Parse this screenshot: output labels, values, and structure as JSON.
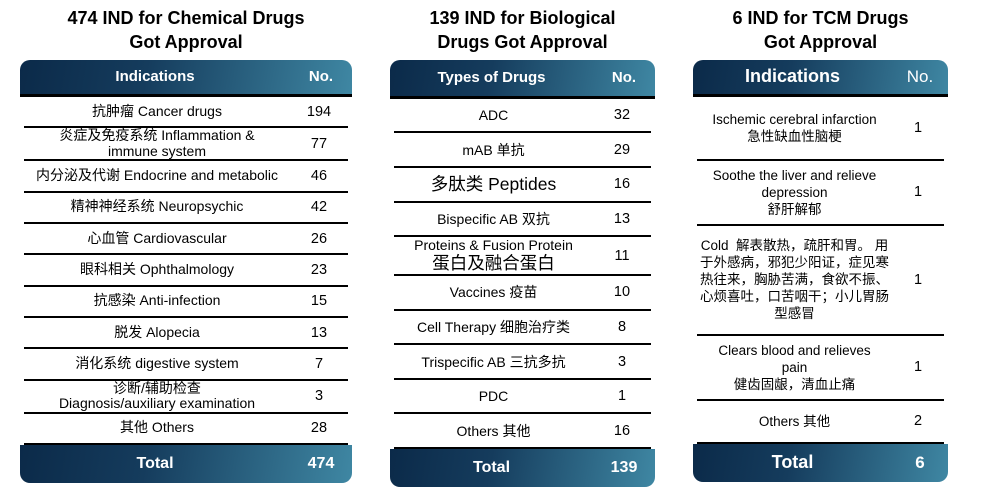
{
  "colors": {
    "gradient_start": "#0b2a49",
    "gradient_end": "#3f87a3",
    "divider": "#000000",
    "header_text": "#ffffff",
    "body_text": "#000000",
    "background": "#ffffff"
  },
  "tables": [
    {
      "id": "chemical",
      "title": "474 IND for Chemical Drugs\nGot Approval",
      "col_label": "Indications",
      "col_no": "No.",
      "rows": [
        {
          "lines": [
            {
              "text": "抗肿瘤 Cancer drugs"
            }
          ],
          "value": "194"
        },
        {
          "lines": [
            {
              "text": "炎症及免疫系统 Inflammation &"
            },
            {
              "text": "immune system"
            }
          ],
          "value": "77"
        },
        {
          "lines": [
            {
              "text": "内分泌及代谢 Endocrine and metabolic"
            }
          ],
          "value": "46"
        },
        {
          "lines": [
            {
              "text": "精神神经系统 Neuropsychic"
            }
          ],
          "value": "42"
        },
        {
          "lines": [
            {
              "text": "心血管 Cardiovascular"
            }
          ],
          "value": "26"
        },
        {
          "lines": [
            {
              "text": "眼科相关 Ophthalmology"
            }
          ],
          "value": "23"
        },
        {
          "lines": [
            {
              "text": "抗感染 Anti-infection"
            }
          ],
          "value": "15"
        },
        {
          "lines": [
            {
              "text": "脱发 Alopecia"
            }
          ],
          "value": "13"
        },
        {
          "lines": [
            {
              "text": "消化系统 digestive system"
            }
          ],
          "value": "7"
        },
        {
          "lines": [
            {
              "text": "诊断/辅助检查"
            },
            {
              "text": "Diagnosis/auxiliary examination"
            }
          ],
          "value": "3"
        },
        {
          "lines": [
            {
              "text": "其他 Others"
            }
          ],
          "value": "28"
        }
      ],
      "total_label": "Total",
      "total_value": "474"
    },
    {
      "id": "biological",
      "title": "139 IND for Biological\nDrugs Got Approval",
      "col_label": "Types of Drugs",
      "col_no": "No.",
      "rows": [
        {
          "lines": [
            {
              "text": "ADC"
            }
          ],
          "value": "32"
        },
        {
          "lines": [
            {
              "text": "mAB 单抗"
            }
          ],
          "value": "29"
        },
        {
          "lines": [
            {
              "text": "多肽类 Peptides",
              "large": true
            }
          ],
          "value": "16"
        },
        {
          "lines": [
            {
              "text": "Bispecific AB 双抗"
            }
          ],
          "value": "13"
        },
        {
          "lines": [
            {
              "text": "Proteins & Fusion Protein"
            },
            {
              "text": "蛋白及融合蛋白",
              "large": true
            }
          ],
          "value": "11"
        },
        {
          "lines": [
            {
              "text": "Vaccines 疫苗"
            }
          ],
          "value": "10"
        },
        {
          "lines": [
            {
              "text": "Cell Therapy 细胞治疗类"
            }
          ],
          "value": "8"
        },
        {
          "lines": [
            {
              "text": "Trispecific AB 三抗多抗"
            }
          ],
          "value": "3"
        },
        {
          "lines": [
            {
              "text": "PDC"
            }
          ],
          "value": "1"
        },
        {
          "lines": [
            {
              "text": "Others 其他"
            }
          ],
          "value": "16"
        }
      ],
      "total_label": "Total",
      "total_value": "139"
    },
    {
      "id": "tcm",
      "title": "6 IND for TCM Drugs\nGot Approval",
      "col_label": "Indications",
      "col_no": "No.",
      "rows": [
        {
          "lines": [
            {
              "text": "Ischemic cerebral infarction"
            },
            {
              "text": "急性缺血性脑梗"
            }
          ],
          "value": "1"
        },
        {
          "lines": [
            {
              "text": "Soothe the liver and relieve"
            },
            {
              "text": "depression"
            },
            {
              "text": "舒肝解郁"
            }
          ],
          "value": "1"
        },
        {
          "lines": [
            {
              "text": "Cold  解表散热，疏肝和胃。 用"
            },
            {
              "text": "于外感病，邪犯少阳证，症见寒"
            },
            {
              "text": "热往来，胸胁苦满，食欲不振、"
            },
            {
              "text": "心烦喜吐，口苦咽干；小儿胃肠"
            },
            {
              "text": "型感冒"
            }
          ],
          "value": "1"
        },
        {
          "lines": [
            {
              "text": "Clears blood and relieves"
            },
            {
              "text": "pain"
            },
            {
              "text": "健齿固龈，清血止痛"
            }
          ],
          "value": "1"
        },
        {
          "lines": [
            {
              "text": "Others 其他"
            }
          ],
          "value": "2"
        }
      ],
      "total_label": "Total",
      "total_value": "6"
    }
  ]
}
